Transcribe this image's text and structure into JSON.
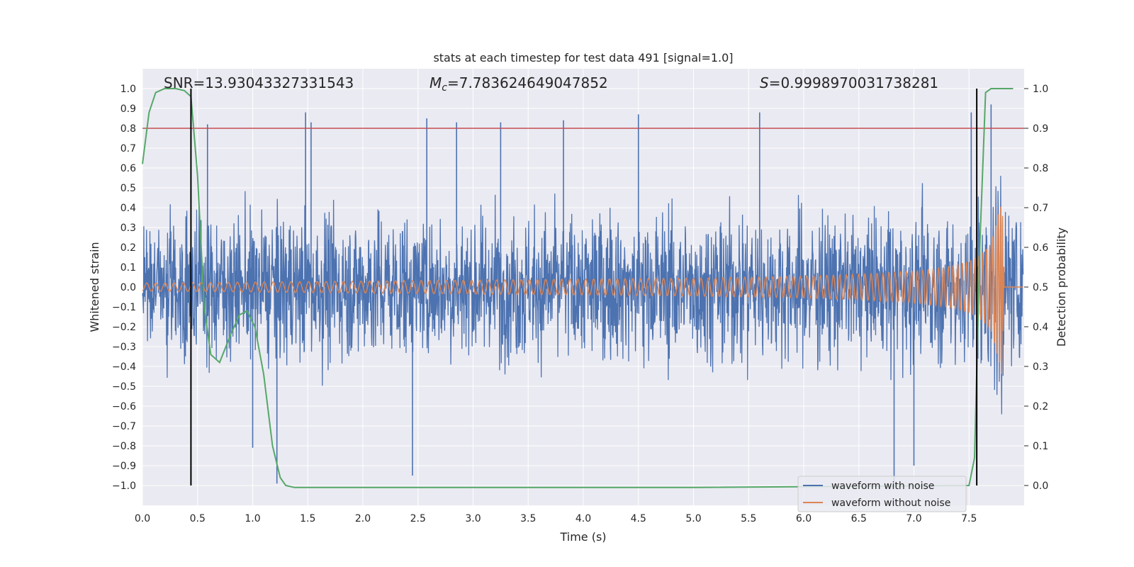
{
  "chart_data": {
    "type": "line",
    "title": "stats at each timestep for test data 491 [signal=1.0]",
    "xlabel": "Time (s)",
    "ylabel": "Whitened strain",
    "y2label": "Detection probability",
    "xlim": [
      0.0,
      8.0
    ],
    "ylim": [
      -1.1,
      1.1
    ],
    "y2lim": [
      -0.05,
      1.05
    ],
    "x_ticks": [
      "0.0",
      "0.5",
      "1.0",
      "1.5",
      "2.0",
      "2.5",
      "3.0",
      "3.5",
      "4.0",
      "4.5",
      "5.0",
      "5.5",
      "6.0",
      "6.5",
      "7.0",
      "7.5"
    ],
    "y_ticks": [
      "1.0",
      "0.9",
      "0.8",
      "0.7",
      "0.6",
      "0.5",
      "0.4",
      "0.3",
      "0.2",
      "0.1",
      "0.0",
      "−0.1",
      "−0.2",
      "−0.3",
      "−0.4",
      "−0.5",
      "−0.6",
      "−0.7",
      "−0.8",
      "−0.9",
      "−1.0"
    ],
    "y2_ticks": [
      "1.0",
      "0.9",
      "0.8",
      "0.7",
      "0.6",
      "0.5",
      "0.4",
      "0.3",
      "0.2",
      "0.1",
      "0.0"
    ],
    "grid": true,
    "legend_placement": "lower-right",
    "stats": {
      "snr_text": "SNR=13.93043327331543",
      "mc_symbol": "M",
      "mc_subscript": "c",
      "mc_value": "=7.783624649047852",
      "s_symbol": "S",
      "s_value": "=0.9998970031738281"
    },
    "series": [
      {
        "name": "waveform with noise",
        "color": "#4c72b0",
        "axis": "left",
        "description_kind": "noisy strain, envelope approx ±0.45 with spikes to ±0.9",
        "envelope": 0.45,
        "spike_x": [
          0.59,
          1.48,
          1.53,
          2.58,
          2.85,
          3.25,
          3.82,
          4.5,
          5.6,
          7.52,
          7.7,
          6.82,
          7.0,
          2.45,
          1.22,
          1.0
        ],
        "spike_y": [
          0.82,
          0.88,
          0.83,
          0.85,
          0.83,
          0.83,
          0.84,
          0.87,
          0.88,
          0.88,
          0.92,
          -0.98,
          -0.9,
          -0.95,
          -0.99,
          -0.81
        ]
      },
      {
        "name": "waveform without noise",
        "color": "#dd8452",
        "axis": "left",
        "description_kind": "chirp: amplitude grows toward merger near 7.8 s then drops to 0",
        "x": [
          0.0,
          1.0,
          2.0,
          3.0,
          4.0,
          5.0,
          6.0,
          6.5,
          7.0,
          7.3,
          7.5,
          7.6,
          7.7,
          7.76,
          7.8,
          7.82,
          7.85,
          8.0
        ],
        "amplitude": [
          0.02,
          0.025,
          0.03,
          0.035,
          0.04,
          0.045,
          0.055,
          0.065,
          0.08,
          0.1,
          0.13,
          0.16,
          0.22,
          0.35,
          0.45,
          0.02,
          0.0,
          0.0
        ]
      },
      {
        "name": "detection probability",
        "color": "#55a868",
        "axis": "right",
        "x": [
          0.0,
          0.06,
          0.12,
          0.2,
          0.3,
          0.38,
          0.44,
          0.5,
          0.56,
          0.62,
          0.7,
          0.8,
          0.88,
          0.95,
          1.02,
          1.1,
          1.18,
          1.25,
          1.3,
          1.38,
          5.0,
          7.5,
          7.55,
          7.6,
          7.65,
          7.7,
          7.75,
          7.9
        ],
        "y": [
          0.81,
          0.94,
          0.99,
          1.0,
          1.0,
          0.995,
          0.98,
          0.78,
          0.45,
          0.33,
          0.31,
          0.38,
          0.43,
          0.44,
          0.4,
          0.28,
          0.1,
          0.02,
          0.0,
          -0.005,
          -0.005,
          0.0,
          0.07,
          0.62,
          0.99,
          1.0,
          1.0,
          1.0
        ]
      }
    ],
    "threshold_line": {
      "y2": 0.9,
      "color": "#c44e52"
    },
    "vertical_markers": [
      {
        "x": 0.44,
        "color": "#000000"
      },
      {
        "x": 7.57,
        "color": "#000000"
      }
    ]
  }
}
